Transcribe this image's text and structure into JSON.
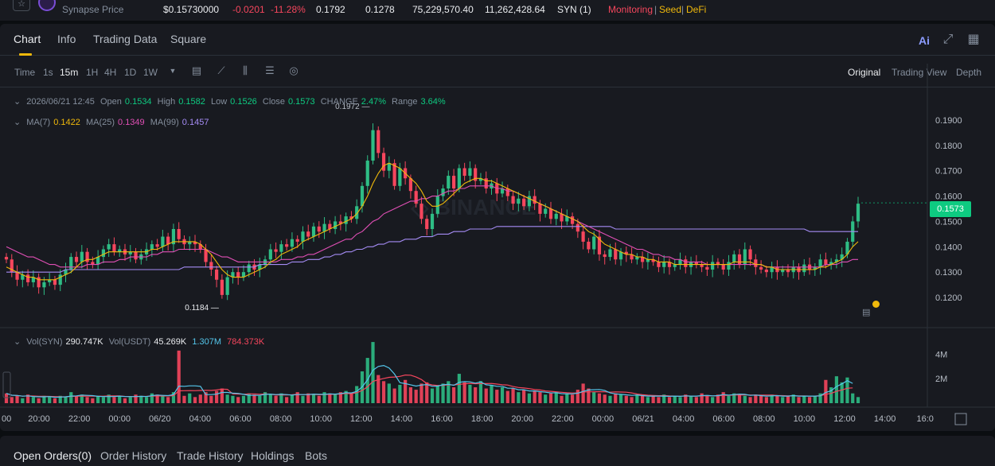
{
  "ticker": {
    "pair_label": "Synapse Price",
    "price": "$0.15730000",
    "change": "-0.0201",
    "change_pct": "-11.28%",
    "high": "0.1792",
    "low": "0.1278",
    "vol_base": "75,229,570.40",
    "vol_quote": "11,262,428.64",
    "token": "SYN (1)",
    "tag_monitoring": "Monitoring",
    "tag_seed": "Seed",
    "tag_defi": "DeFi",
    "sep": "|"
  },
  "tabs": {
    "chart": "Chart",
    "info": "Info",
    "trading_data": "Trading Data",
    "square": "Square",
    "ai": "Ai"
  },
  "toolbar": {
    "time": "Time",
    "s1": "1s",
    "m15": "15m",
    "h1": "1H",
    "h4": "4H",
    "d1": "1D",
    "w1": "1W",
    "original": "Original",
    "trading_view": "Trading View",
    "depth": "Depth"
  },
  "ohlc": {
    "date": "2026/06/21 12:45",
    "open_label": "Open",
    "open": "0.1534",
    "high_label": "High",
    "high": "0.1582",
    "low_label": "Low",
    "low": "0.1526",
    "close_label": "Close",
    "close": "0.1573",
    "change_label": "CHANGE",
    "change": "2.47%",
    "range_label": "Range",
    "range": "3.64%"
  },
  "ma": {
    "ma7_label": "MA(7)",
    "ma7": "0.1422",
    "ma25_label": "MA(25)",
    "ma25": "0.1349",
    "ma99_label": "MA(99)",
    "ma99": "0.1457"
  },
  "vol_legend": {
    "syn_label": "Vol(SYN)",
    "syn": "290.747K",
    "usdt_label": "Vol(USDT)",
    "usdt": "45.269K",
    "v2": "1.307M",
    "v3": "784.373K"
  },
  "current_price_tag": "0.1573",
  "bottom_tabs": {
    "open_orders": "Open Orders(0)",
    "order_history": "Order History",
    "trade_history": "Trade History",
    "holdings": "Holdings",
    "bots": "Bots"
  },
  "chart_data": {
    "type": "candlestick",
    "price_axis": [
      "0.1900",
      "0.1800",
      "0.1700",
      "0.1600",
      "0.1500",
      "0.1400",
      "0.1300",
      "0.1200"
    ],
    "volume_axis": [
      "4M",
      "2M"
    ],
    "time_axis": [
      "00",
      "20:00",
      "22:00",
      "00:00",
      "06/20",
      "04:00",
      "06:00",
      "08:00",
      "10:00",
      "12:00",
      "14:00",
      "16:00",
      "18:00",
      "20:00",
      "22:00",
      "00:00",
      "06/21",
      "04:00",
      "06:00",
      "08:00",
      "10:00",
      "12:00",
      "14:00",
      "16:0"
    ],
    "ylim": [
      0.115,
      0.195
    ],
    "annotations": {
      "max": "0.1972",
      "min": "0.1184"
    },
    "closes": [
      0.135,
      0.13,
      0.127,
      0.129,
      0.126,
      0.128,
      0.124,
      0.126,
      0.127,
      0.125,
      0.129,
      0.131,
      0.136,
      0.134,
      0.138,
      0.134,
      0.133,
      0.136,
      0.139,
      0.141,
      0.138,
      0.139,
      0.137,
      0.138,
      0.135,
      0.137,
      0.139,
      0.141,
      0.14,
      0.144,
      0.141,
      0.147,
      0.143,
      0.141,
      0.142,
      0.141,
      0.139,
      0.134,
      0.131,
      0.127,
      0.121,
      0.128,
      0.13,
      0.128,
      0.13,
      0.133,
      0.131,
      0.133,
      0.135,
      0.139,
      0.138,
      0.141,
      0.14,
      0.143,
      0.142,
      0.146,
      0.144,
      0.148,
      0.146,
      0.149,
      0.147,
      0.15,
      0.149,
      0.152,
      0.151,
      0.156,
      0.164,
      0.174,
      0.186,
      0.177,
      0.17,
      0.173,
      0.164,
      0.171,
      0.167,
      0.162,
      0.157,
      0.151,
      0.147,
      0.153,
      0.16,
      0.163,
      0.168,
      0.163,
      0.171,
      0.168,
      0.171,
      0.166,
      0.167,
      0.163,
      0.165,
      0.161,
      0.163,
      0.16,
      0.157,
      0.159,
      0.156,
      0.16,
      0.157,
      0.153,
      0.155,
      0.151,
      0.153,
      0.15,
      0.152,
      0.149,
      0.146,
      0.142,
      0.139,
      0.144,
      0.137,
      0.136,
      0.139,
      0.135,
      0.138,
      0.137,
      0.135,
      0.136,
      0.134,
      0.135,
      0.134,
      0.132,
      0.134,
      0.132,
      0.133,
      0.135,
      0.132,
      0.134,
      0.133,
      0.132,
      0.131,
      0.134,
      0.133,
      0.131,
      0.134,
      0.137,
      0.133,
      0.139,
      0.135,
      0.132,
      0.131,
      0.13,
      0.132,
      0.13,
      0.131,
      0.13,
      0.132,
      0.13,
      0.133,
      0.131,
      0.132,
      0.135,
      0.133,
      0.134,
      0.135,
      0.137,
      0.142,
      0.15,
      0.157
    ],
    "ma7": [
      0.132,
      0.131,
      0.13,
      0.129,
      0.128,
      0.128,
      0.127,
      0.127,
      0.127,
      0.127,
      0.128,
      0.129,
      0.13,
      0.132,
      0.134,
      0.135,
      0.135,
      0.136,
      0.137,
      0.138,
      0.138,
      0.138,
      0.138,
      0.138,
      0.138,
      0.138,
      0.138,
      0.139,
      0.139,
      0.14,
      0.141,
      0.142,
      0.142,
      0.142,
      0.142,
      0.142,
      0.141,
      0.139,
      0.137,
      0.134,
      0.131,
      0.129,
      0.128,
      0.128,
      0.128,
      0.129,
      0.13,
      0.131,
      0.132,
      0.134,
      0.135,
      0.137,
      0.138,
      0.139,
      0.14,
      0.142,
      0.143,
      0.144,
      0.145,
      0.146,
      0.147,
      0.148,
      0.149,
      0.15,
      0.151,
      0.153,
      0.156,
      0.16,
      0.165,
      0.169,
      0.172,
      0.173,
      0.172,
      0.171,
      0.169,
      0.167,
      0.165,
      0.162,
      0.158,
      0.156,
      0.156,
      0.157,
      0.159,
      0.161,
      0.163,
      0.165,
      0.166,
      0.167,
      0.167,
      0.166,
      0.166,
      0.165,
      0.164,
      0.163,
      0.162,
      0.161,
      0.16,
      0.159,
      0.158,
      0.157,
      0.156,
      0.155,
      0.154,
      0.153,
      0.152,
      0.151,
      0.15,
      0.148,
      0.146,
      0.145,
      0.143,
      0.141,
      0.14,
      0.139,
      0.138,
      0.137,
      0.137,
      0.136,
      0.136,
      0.135,
      0.135,
      0.134,
      0.134,
      0.134,
      0.133,
      0.133,
      0.133,
      0.133,
      0.133,
      0.133,
      0.133,
      0.133,
      0.133,
      0.133,
      0.133,
      0.134,
      0.134,
      0.134,
      0.134,
      0.133,
      0.133,
      0.132,
      0.132,
      0.131,
      0.131,
      0.131,
      0.131,
      0.131,
      0.131,
      0.131,
      0.131,
      0.132,
      0.132,
      0.133,
      0.134,
      0.135,
      0.137,
      0.14,
      0.142
    ],
    "ma25": [
      0.14,
      0.139,
      0.138,
      0.137,
      0.136,
      0.136,
      0.135,
      0.134,
      0.133,
      0.133,
      0.132,
      0.132,
      0.132,
      0.132,
      0.132,
      0.133,
      0.133,
      0.133,
      0.134,
      0.134,
      0.134,
      0.135,
      0.135,
      0.136,
      0.136,
      0.136,
      0.136,
      0.137,
      0.137,
      0.138,
      0.138,
      0.138,
      0.139,
      0.139,
      0.139,
      0.139,
      0.139,
      0.139,
      0.138,
      0.137,
      0.136,
      0.136,
      0.135,
      0.134,
      0.134,
      0.134,
      0.134,
      0.134,
      0.134,
      0.134,
      0.134,
      0.135,
      0.135,
      0.135,
      0.136,
      0.136,
      0.137,
      0.137,
      0.138,
      0.139,
      0.14,
      0.141,
      0.142,
      0.143,
      0.143,
      0.145,
      0.146,
      0.148,
      0.15,
      0.151,
      0.153,
      0.154,
      0.155,
      0.156,
      0.157,
      0.158,
      0.158,
      0.159,
      0.159,
      0.16,
      0.16,
      0.161,
      0.162,
      0.162,
      0.163,
      0.163,
      0.164,
      0.164,
      0.164,
      0.164,
      0.164,
      0.163,
      0.163,
      0.162,
      0.162,
      0.161,
      0.16,
      0.159,
      0.158,
      0.157,
      0.156,
      0.155,
      0.154,
      0.153,
      0.152,
      0.151,
      0.15,
      0.149,
      0.148,
      0.147,
      0.146,
      0.145,
      0.144,
      0.143,
      0.142,
      0.141,
      0.14,
      0.139,
      0.139,
      0.138,
      0.137,
      0.137,
      0.136,
      0.136,
      0.135,
      0.135,
      0.134,
      0.134,
      0.134,
      0.134,
      0.133,
      0.133,
      0.133,
      0.133,
      0.133,
      0.133,
      0.133,
      0.133,
      0.133,
      0.133,
      0.133,
      0.132,
      0.132,
      0.132,
      0.132,
      0.132,
      0.132,
      0.132,
      0.132,
      0.132,
      0.132,
      0.132,
      0.133,
      0.133,
      0.133,
      0.134,
      0.134,
      0.135,
      0.135
    ],
    "ma99": [
      0.13,
      0.13,
      0.13,
      0.13,
      0.13,
      0.13,
      0.13,
      0.13,
      0.13,
      0.13,
      0.13,
      0.131,
      0.131,
      0.131,
      0.131,
      0.131,
      0.131,
      0.131,
      0.131,
      0.131,
      0.131,
      0.131,
      0.131,
      0.131,
      0.131,
      0.131,
      0.131,
      0.131,
      0.131,
      0.131,
      0.131,
      0.131,
      0.131,
      0.132,
      0.132,
      0.132,
      0.132,
      0.132,
      0.132,
      0.132,
      0.132,
      0.132,
      0.132,
      0.132,
      0.132,
      0.132,
      0.132,
      0.133,
      0.133,
      0.133,
      0.133,
      0.133,
      0.133,
      0.134,
      0.134,
      0.134,
      0.135,
      0.135,
      0.135,
      0.136,
      0.136,
      0.137,
      0.137,
      0.138,
      0.138,
      0.139,
      0.139,
      0.14,
      0.14,
      0.141,
      0.141,
      0.142,
      0.142,
      0.142,
      0.143,
      0.143,
      0.143,
      0.144,
      0.144,
      0.144,
      0.145,
      0.145,
      0.145,
      0.146,
      0.146,
      0.146,
      0.147,
      0.147,
      0.147,
      0.147,
      0.147,
      0.148,
      0.148,
      0.148,
      0.148,
      0.148,
      0.148,
      0.148,
      0.148,
      0.148,
      0.148,
      0.148,
      0.148,
      0.148,
      0.148,
      0.148,
      0.148,
      0.148,
      0.148,
      0.148,
      0.148,
      0.148,
      0.148,
      0.147,
      0.147,
      0.147,
      0.147,
      0.147,
      0.147,
      0.147,
      0.147,
      0.147,
      0.147,
      0.147,
      0.147,
      0.147,
      0.147,
      0.147,
      0.147,
      0.147,
      0.147,
      0.147,
      0.147,
      0.147,
      0.147,
      0.147,
      0.147,
      0.147,
      0.147,
      0.147,
      0.147,
      0.147,
      0.147,
      0.147,
      0.147,
      0.147,
      0.147,
      0.147,
      0.147,
      0.146,
      0.146,
      0.146,
      0.146,
      0.146,
      0.146,
      0.146,
      0.146,
      0.146,
      0.146
    ],
    "volumes": [
      0.8,
      0.5,
      0.6,
      0.4,
      0.7,
      0.5,
      0.4,
      0.6,
      0.5,
      0.4,
      0.6,
      0.5,
      0.9,
      0.6,
      0.7,
      0.5,
      0.4,
      0.6,
      0.5,
      0.7,
      0.5,
      0.6,
      0.4,
      0.5,
      0.7,
      0.6,
      0.5,
      0.8,
      0.7,
      0.6,
      0.5,
      0.9,
      4.3,
      0.6,
      0.8,
      0.5,
      0.7,
      0.9,
      0.6,
      1.0,
      1.2,
      0.7,
      0.6,
      0.5,
      0.6,
      0.8,
      0.7,
      0.6,
      0.9,
      0.7,
      0.6,
      0.8,
      0.5,
      0.7,
      0.9,
      0.6,
      0.8,
      0.7,
      0.6,
      0.9,
      0.8,
      0.7,
      0.9,
      1.0,
      0.8,
      1.4,
      2.6,
      3.7,
      5.0,
      2.3,
      1.8,
      1.6,
      1.2,
      1.5,
      1.9,
      1.3,
      1.1,
      1.6,
      1.7,
      1.2,
      1.4,
      1.6,
      1.8,
      1.3,
      2.4,
      1.7,
      1.5,
      1.3,
      1.8,
      1.2,
      1.5,
      1.1,
      1.3,
      1.0,
      1.2,
      0.9,
      1.1,
      0.8,
      1.0,
      0.9,
      0.7,
      0.8,
      0.9,
      0.6,
      0.8,
      0.7,
      1.1,
      1.6,
      1.2,
      0.9,
      0.8,
      0.7,
      0.6,
      0.8,
      0.7,
      0.6,
      0.5,
      0.7,
      0.6,
      0.5,
      0.6,
      0.5,
      0.7,
      0.5,
      0.6,
      0.5,
      0.7,
      0.6,
      0.5,
      0.8,
      0.6,
      0.5,
      0.7,
      0.9,
      0.6,
      0.8,
      0.7,
      0.6,
      0.5,
      0.7,
      0.6,
      0.5,
      0.7,
      0.6,
      0.5,
      0.6,
      0.7,
      0.5,
      0.6,
      0.5,
      0.6,
      0.8,
      1.9,
      1.3,
      2.2,
      1.7,
      2.1,
      0.8
    ]
  }
}
